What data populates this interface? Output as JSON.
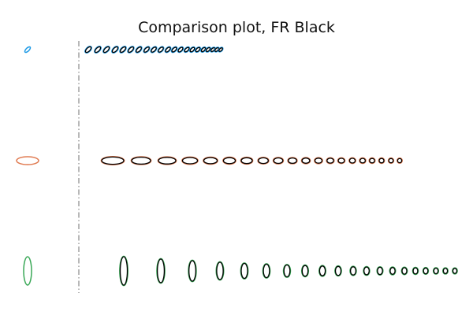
{
  "chart_data": {
    "type": "scatter",
    "title": "Comparison plot, FR Black",
    "colors": {
      "outline": "#000000",
      "divider": "#888888"
    },
    "rows": [
      {
        "reference": {
          "rx": 2.0,
          "ry": 4.5,
          "angle": 45,
          "color": "#1f9be6"
        },
        "samples": [
          {
            "x": 112,
            "rx": 2.2,
            "ry": 4.5,
            "angle": 45
          },
          {
            "x": 124,
            "rx": 2.2,
            "ry": 4.5,
            "angle": 45
          },
          {
            "x": 135,
            "rx": 2.2,
            "ry": 4.5,
            "angle": 45
          },
          {
            "x": 146,
            "rx": 2.2,
            "ry": 4.5,
            "angle": 45
          },
          {
            "x": 156,
            "rx": 2.1,
            "ry": 4.4,
            "angle": 45
          },
          {
            "x": 166,
            "rx": 2.1,
            "ry": 4.3,
            "angle": 45
          },
          {
            "x": 176,
            "rx": 2.1,
            "ry": 4.2,
            "angle": 45
          },
          {
            "x": 186,
            "rx": 2.0,
            "ry": 4.1,
            "angle": 45
          },
          {
            "x": 195,
            "rx": 2.0,
            "ry": 4.0,
            "angle": 45
          },
          {
            "x": 204,
            "rx": 2.0,
            "ry": 3.9,
            "angle": 45
          },
          {
            "x": 213,
            "rx": 1.9,
            "ry": 3.8,
            "angle": 45
          },
          {
            "x": 221,
            "rx": 1.9,
            "ry": 3.7,
            "angle": 45
          },
          {
            "x": 229,
            "rx": 1.9,
            "ry": 3.6,
            "angle": 45
          },
          {
            "x": 237,
            "rx": 1.8,
            "ry": 3.5,
            "angle": 45
          },
          {
            "x": 244,
            "rx": 1.8,
            "ry": 3.4,
            "angle": 45
          },
          {
            "x": 251,
            "rx": 1.8,
            "ry": 3.3,
            "angle": 45
          },
          {
            "x": 258,
            "rx": 1.7,
            "ry": 3.2,
            "angle": 45
          },
          {
            "x": 264,
            "rx": 1.7,
            "ry": 3.1,
            "angle": 45
          },
          {
            "x": 270,
            "rx": 1.6,
            "ry": 3.0,
            "angle": 45
          },
          {
            "x": 275,
            "rx": 1.6,
            "ry": 2.9,
            "angle": 45
          },
          {
            "x": 280,
            "rx": 1.5,
            "ry": 2.8,
            "angle": 45
          }
        ]
      },
      {
        "reference": {
          "rx": 14,
          "ry": 5,
          "angle": 0,
          "color": "#e07a50"
        },
        "samples": [
          {
            "x": 143,
            "rx": 14,
            "ry": 4.6,
            "angle": 0
          },
          {
            "x": 179,
            "rx": 12,
            "ry": 4.4,
            "angle": 0
          },
          {
            "x": 212,
            "rx": 11,
            "ry": 4.2,
            "angle": 0
          },
          {
            "x": 241,
            "rx": 9.5,
            "ry": 4.0,
            "angle": 0
          },
          {
            "x": 267,
            "rx": 8.5,
            "ry": 3.9,
            "angle": 0
          },
          {
            "x": 291,
            "rx": 7.5,
            "ry": 3.8,
            "angle": 0
          },
          {
            "x": 313,
            "rx": 7.0,
            "ry": 3.7,
            "angle": 0
          },
          {
            "x": 334,
            "rx": 6.3,
            "ry": 3.6,
            "angle": 0
          },
          {
            "x": 353,
            "rx": 5.8,
            "ry": 3.5,
            "angle": 0
          },
          {
            "x": 371,
            "rx": 5.3,
            "ry": 3.4,
            "angle": 0
          },
          {
            "x": 388,
            "rx": 4.9,
            "ry": 3.3,
            "angle": 0
          },
          {
            "x": 404,
            "rx": 4.5,
            "ry": 3.2,
            "angle": 0
          },
          {
            "x": 419,
            "rx": 4.2,
            "ry": 3.1,
            "angle": 0
          },
          {
            "x": 433,
            "rx": 3.9,
            "ry": 3.0,
            "angle": 0
          },
          {
            "x": 447,
            "rx": 3.6,
            "ry": 3.0,
            "angle": 0
          },
          {
            "x": 460,
            "rx": 3.4,
            "ry": 2.9,
            "angle": 0
          },
          {
            "x": 472,
            "rx": 3.2,
            "ry": 2.8,
            "angle": 0
          },
          {
            "x": 484,
            "rx": 3.0,
            "ry": 2.8,
            "angle": 0
          },
          {
            "x": 496,
            "rx": 2.8,
            "ry": 2.7,
            "angle": 0
          },
          {
            "x": 507,
            "rx": 2.6,
            "ry": 2.6,
            "angle": 0
          }
        ]
      },
      {
        "reference": {
          "rx": 5,
          "ry": 18,
          "angle": 0,
          "color": "#3aa857"
        },
        "samples": [
          {
            "x": 157,
            "rx": 4.5,
            "ry": 18,
            "angle": 0
          },
          {
            "x": 204,
            "rx": 4.4,
            "ry": 15,
            "angle": 0
          },
          {
            "x": 244,
            "rx": 4.3,
            "ry": 13,
            "angle": 0
          },
          {
            "x": 279,
            "rx": 4.1,
            "ry": 11,
            "angle": 0
          },
          {
            "x": 310,
            "rx": 4.0,
            "ry": 9.5,
            "angle": 0
          },
          {
            "x": 338,
            "rx": 3.9,
            "ry": 8.5,
            "angle": 0
          },
          {
            "x": 364,
            "rx": 3.8,
            "ry": 7.5,
            "angle": 0
          },
          {
            "x": 387,
            "rx": 3.7,
            "ry": 6.8,
            "angle": 0
          },
          {
            "x": 409,
            "rx": 3.6,
            "ry": 6.2,
            "angle": 0
          },
          {
            "x": 429,
            "rx": 3.5,
            "ry": 5.7,
            "angle": 0
          },
          {
            "x": 448,
            "rx": 3.4,
            "ry": 5.2,
            "angle": 0
          },
          {
            "x": 465,
            "rx": 3.3,
            "ry": 4.9,
            "angle": 0
          },
          {
            "x": 482,
            "rx": 3.2,
            "ry": 4.6,
            "angle": 0
          },
          {
            "x": 498,
            "rx": 3.1,
            "ry": 4.3,
            "angle": 0
          },
          {
            "x": 513,
            "rx": 3.0,
            "ry": 4.1,
            "angle": 0
          },
          {
            "x": 527,
            "rx": 2.9,
            "ry": 3.9,
            "angle": 0
          },
          {
            "x": 540,
            "rx": 2.8,
            "ry": 3.7,
            "angle": 0
          },
          {
            "x": 553,
            "rx": 2.7,
            "ry": 3.5,
            "angle": 0
          },
          {
            "x": 565,
            "rx": 2.6,
            "ry": 3.4,
            "angle": 0
          },
          {
            "x": 577,
            "rx": 2.5,
            "ry": 3.2,
            "angle": 0
          }
        ]
      }
    ]
  }
}
